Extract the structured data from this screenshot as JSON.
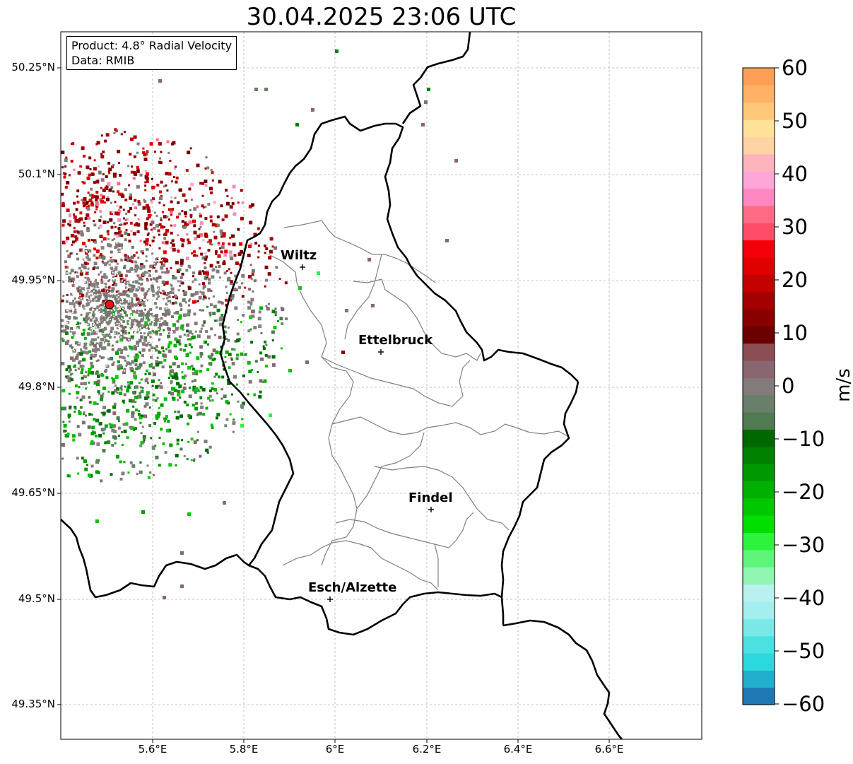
{
  "title": "30.04.2025 23:06 UTC",
  "info": {
    "product": "Product: 4.8° Radial Velocity",
    "source": "Data: RMIB"
  },
  "axes": {
    "lon_ticks": [
      "5.6°E",
      "5.8°E",
      "6°E",
      "6.2°E",
      "6.4°E",
      "6.6°E"
    ],
    "lat_ticks": [
      "50.25°N",
      "50.1°N",
      "49.95°N",
      "49.8°N",
      "49.65°N",
      "49.5°N",
      "49.35°N"
    ]
  },
  "cities": [
    {
      "name": "Wiltz",
      "lon": 5.93,
      "lat": 49.966
    },
    {
      "name": "Ettelbruck",
      "lon": 6.1,
      "lat": 49.85
    },
    {
      "name": "Findel",
      "lon": 6.21,
      "lat": 49.627
    },
    {
      "name": "Esch/Alzette",
      "lon": 5.99,
      "lat": 49.5
    }
  ],
  "radar_site": {
    "lon": 5.505,
    "lat": 49.914,
    "color": "#e8140c"
  },
  "colorbar": {
    "unit": "m/s",
    "ticks": [
      "60",
      "50",
      "40",
      "30",
      "20",
      "10",
      "0",
      "−10",
      "−20",
      "−30",
      "−40",
      "−50",
      "−60"
    ],
    "colors": [
      "#1f77b4",
      "#23aecd",
      "#2ad8de",
      "#4ce0e0",
      "#7be8e8",
      "#a3efef",
      "#b9f1f1",
      "#8ff7b2",
      "#5ff57a",
      "#2df23e",
      "#00e000",
      "#00c800",
      "#00b000",
      "#009800",
      "#008000",
      "#006800",
      "#507a50",
      "#6a7f6a",
      "#837a7a",
      "#8a6670",
      "#8c4e55",
      "#6b0000",
      "#880000",
      "#a50000",
      "#c40000",
      "#e00000",
      "#f5000a",
      "#ff4c68",
      "#ff6b85",
      "#ff88c2",
      "#ffa6d6",
      "#ffb3bd",
      "#ffd3a3",
      "#ffe198",
      "#ffc77a",
      "#ffb266",
      "#ff9f55"
    ]
  },
  "map_colors": {
    "border": "#000000",
    "canton": "#808080",
    "grid": "#b4b4b4"
  }
}
